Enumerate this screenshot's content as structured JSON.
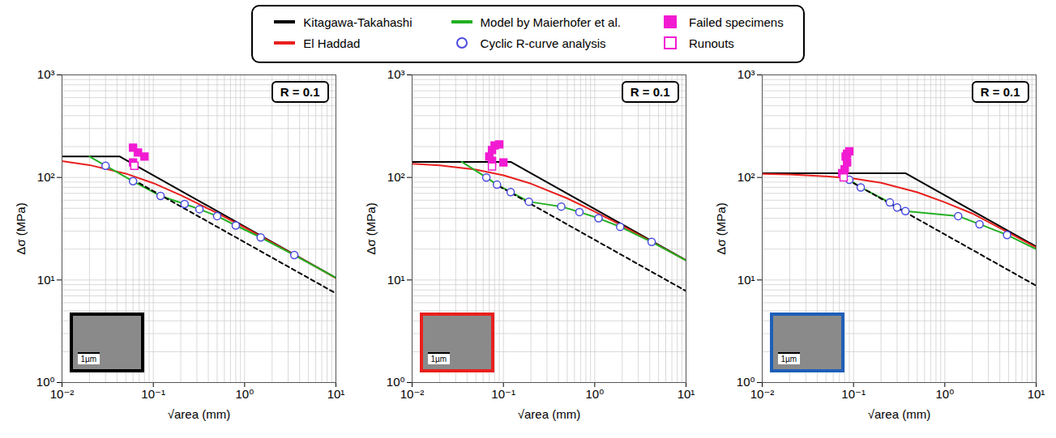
{
  "chart_data": [
    {
      "type": "line",
      "log": true,
      "grid": true,
      "legend": "top",
      "xlabel": "√area (mm)",
      "ylabel": "Δσ (MPa)",
      "xlim": [
        0.01,
        10
      ],
      "ylim": [
        1,
        1000
      ],
      "xticks": [
        {
          "value": 0.01,
          "label": "10⁻²"
        },
        {
          "value": 0.1,
          "label": "10⁻¹"
        },
        {
          "value": 1,
          "label": "10⁰"
        },
        {
          "value": 10,
          "label": "10¹"
        }
      ],
      "yticks": [
        {
          "value": 1,
          "label": "10⁰"
        },
        {
          "value": 10,
          "label": "10¹"
        },
        {
          "value": 100,
          "label": "10²"
        },
        {
          "value": 1000,
          "label": "10³"
        }
      ],
      "annotations": [
        {
          "text": "R = 0.1",
          "position": "top right"
        },
        {
          "text": "1µm",
          "position": "inset"
        }
      ],
      "series": [
        {
          "name": "Kitagawa-Takahashi",
          "type": "line",
          "color": "#000000",
          "line_style": "solid",
          "x": [
            0.01,
            0.043,
            10
          ],
          "values": [
            160,
            160,
            10.5
          ]
        },
        {
          "name": "El Haddad",
          "type": "line",
          "color": "#e8201e",
          "line_style": "solid",
          "x": [
            0.01,
            0.02,
            0.05,
            0.1,
            0.2,
            0.5,
            1,
            2,
            5,
            10
          ],
          "values": [
            144,
            132,
            109,
            88,
            67,
            45,
            32.5,
            23.2,
            14.8,
            10.4
          ]
        },
        {
          "name": "Model by Maierhofer et al.",
          "type": "line",
          "color": "#22b022",
          "line_style": "solid",
          "x": [
            0.02,
            0.03,
            0.06,
            0.12,
            0.22,
            0.32,
            0.5,
            0.8,
            1.5,
            3.5,
            10
          ],
          "values": [
            160,
            130,
            92,
            66,
            55,
            49,
            42,
            34,
            26,
            17.5,
            10.5
          ]
        },
        {
          "name": "Cyclic R-curve analysis",
          "type": "scatter",
          "color": "#4a4ae0",
          "marker": "open circle",
          "x": [
            0.03,
            0.06,
            0.12,
            0.22,
            0.32,
            0.5,
            0.8,
            1.5,
            3.5
          ],
          "values": [
            130,
            92,
            66,
            55,
            49,
            42,
            34,
            26,
            17.5
          ]
        },
        {
          "name": "Failed specimens",
          "type": "scatter",
          "color": "#f21bd2",
          "marker": "filled square",
          "x": [
            0.06,
            0.068,
            0.08,
            0.06
          ],
          "values": [
            195,
            175,
            160,
            140
          ]
        },
        {
          "name": "Runouts",
          "type": "scatter",
          "color": "#f21bd2",
          "marker": "open square",
          "x": [
            0.062
          ],
          "values": [
            130
          ]
        },
        {
          "type": "line",
          "color": "#000000",
          "line_style": "dashed",
          "x": [
            0.07,
            10
          ],
          "values": [
            88,
            7.4
          ]
        }
      ]
    },
    {
      "type": "line",
      "log": true,
      "grid": true,
      "legend": "top",
      "xlabel": "√area (mm)",
      "ylabel": "Δσ (MPa)",
      "xlim": [
        0.01,
        10
      ],
      "ylim": [
        1,
        1000
      ],
      "xticks": [
        {
          "value": 0.01,
          "label": "10⁻²"
        },
        {
          "value": 0.1,
          "label": "10⁻¹"
        },
        {
          "value": 1,
          "label": "10⁰"
        },
        {
          "value": 10,
          "label": "10¹"
        }
      ],
      "yticks": [
        {
          "value": 1,
          "label": "10⁰"
        },
        {
          "value": 10,
          "label": "10¹"
        },
        {
          "value": 100,
          "label": "10²"
        },
        {
          "value": 1000,
          "label": "10³"
        }
      ],
      "annotations": [
        {
          "text": "R = 0.1",
          "position": "top right"
        },
        {
          "text": "1µm",
          "position": "inset"
        }
      ],
      "series": [
        {
          "name": "Kitagawa-Takahashi",
          "type": "line",
          "color": "#000000",
          "line_style": "solid",
          "x": [
            0.01,
            0.12,
            10
          ],
          "values": [
            142,
            142,
            15.6
          ]
        },
        {
          "name": "El Haddad",
          "type": "line",
          "color": "#e8201e",
          "line_style": "solid",
          "x": [
            0.01,
            0.02,
            0.05,
            0.1,
            0.2,
            0.5,
            1,
            2,
            5,
            10
          ],
          "values": [
            136,
            131,
            119,
            105,
            87,
            62.5,
            46.5,
            33.8,
            21.7,
            15.5
          ]
        },
        {
          "name": "Model by Maierhofer et al.",
          "type": "line",
          "color": "#22b022",
          "line_style": "solid",
          "x": [
            0.035,
            0.065,
            0.085,
            0.12,
            0.19,
            0.43,
            0.68,
            1.1,
            1.9,
            4.2,
            10
          ],
          "values": [
            142,
            100,
            85,
            72,
            58,
            52,
            46,
            40,
            33,
            23.5,
            15.5
          ]
        },
        {
          "name": "Cyclic R-curve analysis",
          "type": "scatter",
          "color": "#4a4ae0",
          "marker": "open circle",
          "x": [
            0.065,
            0.085,
            0.12,
            0.19,
            0.43,
            0.68,
            1.1,
            1.9,
            4.2
          ],
          "values": [
            100,
            85,
            72,
            58,
            52,
            46,
            40,
            33,
            23.5
          ]
        },
        {
          "name": "Failed specimens",
          "type": "scatter",
          "color": "#f21bd2",
          "marker": "filled square",
          "x": [
            0.07,
            0.075,
            0.08,
            0.09,
            0.1,
            0.075
          ],
          "values": [
            160,
            185,
            205,
            210,
            140,
            145
          ]
        },
        {
          "name": "Runouts",
          "type": "scatter",
          "color": "#f21bd2",
          "marker": "open square",
          "x": [
            0.075
          ],
          "values": [
            128
          ]
        },
        {
          "type": "line",
          "color": "#000000",
          "line_style": "dashed",
          "x": [
            0.09,
            10
          ],
          "values": [
            82,
            7.8
          ]
        }
      ]
    },
    {
      "type": "line",
      "log": true,
      "grid": true,
      "legend": "top",
      "xlabel": "√area (mm)",
      "ylabel": "Δσ (MPa)",
      "xlim": [
        0.01,
        10
      ],
      "ylim": [
        1,
        1000
      ],
      "xticks": [
        {
          "value": 0.01,
          "label": "10⁻²"
        },
        {
          "value": 0.1,
          "label": "10⁻¹"
        },
        {
          "value": 1,
          "label": "10⁰"
        },
        {
          "value": 10,
          "label": "10¹"
        }
      ],
      "yticks": [
        {
          "value": 1,
          "label": "10⁰"
        },
        {
          "value": 10,
          "label": "10¹"
        },
        {
          "value": 100,
          "label": "10²"
        },
        {
          "value": 1000,
          "label": "10³"
        }
      ],
      "annotations": [
        {
          "text": "R = 0.1",
          "position": "top right"
        },
        {
          "text": "1µm",
          "position": "inset"
        }
      ],
      "series": [
        {
          "name": "Kitagawa-Takahashi",
          "type": "line",
          "color": "#000000",
          "line_style": "solid",
          "x": [
            0.01,
            0.37,
            10
          ],
          "values": [
            110,
            110,
            21.2
          ]
        },
        {
          "name": "El Haddad",
          "type": "line",
          "color": "#e8201e",
          "line_style": "solid",
          "x": [
            0.01,
            0.02,
            0.05,
            0.1,
            0.2,
            0.5,
            1,
            2,
            5,
            10
          ],
          "values": [
            108.6,
            107,
            102.5,
            97.6,
            88.6,
            71.7,
            57.2,
            44.5,
            28.9,
            20.8
          ]
        },
        {
          "name": "Model by Maierhofer et al.",
          "type": "line",
          "color": "#22b022",
          "line_style": "solid",
          "x": [
            0.08,
            0.09,
            0.12,
            0.25,
            0.3,
            0.37,
            0.6,
            1.4,
            2.4,
            4.8,
            10
          ],
          "values": [
            110,
            95,
            80,
            57,
            51,
            47,
            45,
            42,
            35,
            27.5,
            20
          ]
        },
        {
          "name": "Cyclic R-curve analysis",
          "type": "scatter",
          "color": "#4a4ae0",
          "marker": "open circle",
          "x": [
            0.09,
            0.12,
            0.25,
            0.3,
            0.37,
            1.4,
            2.4,
            4.8
          ],
          "values": [
            95,
            80,
            57,
            51,
            47,
            42,
            35,
            27.5
          ]
        },
        {
          "name": "Failed specimens",
          "type": "scatter",
          "color": "#f21bd2",
          "marker": "filled square",
          "x": [
            0.075,
            0.08,
            0.082,
            0.085,
            0.09,
            0.085
          ],
          "values": [
            110,
            120,
            160,
            170,
            180,
            140
          ]
        },
        {
          "name": "Runouts",
          "type": "scatter",
          "color": "#f21bd2",
          "marker": "open square",
          "x": [
            0.078
          ],
          "values": [
            100
          ]
        },
        {
          "type": "line",
          "color": "#000000",
          "line_style": "dashed",
          "x": [
            0.1,
            10
          ],
          "values": [
            88,
            8.8
          ]
        }
      ]
    }
  ]
}
